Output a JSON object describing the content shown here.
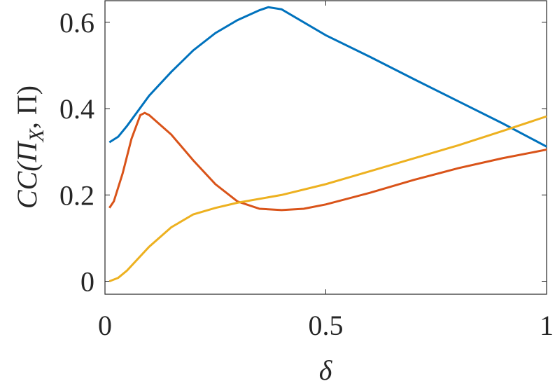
{
  "chart_data": {
    "type": "line",
    "xlabel": "δ",
    "ylabel": [
      "CC(Π",
      "X",
      ", Π)"
    ],
    "xlim": [
      0,
      1
    ],
    "ylim": [
      -0.03,
      0.65
    ],
    "xticks": [
      0,
      0.5,
      1
    ],
    "yticks": [
      0,
      0.2,
      0.4,
      0.6
    ],
    "series": [
      {
        "color": "#0072BD",
        "x": [
          0.01,
          0.03,
          0.05,
          0.1,
          0.15,
          0.2,
          0.25,
          0.3,
          0.35,
          0.37,
          0.4,
          0.5,
          0.6,
          0.7,
          0.8,
          0.9,
          1.0
        ],
        "values": [
          0.322,
          0.335,
          0.36,
          0.43,
          0.485,
          0.535,
          0.575,
          0.605,
          0.628,
          0.635,
          0.63,
          0.57,
          0.52,
          0.468,
          0.417,
          0.366,
          0.312
        ]
      },
      {
        "color": "#D95319",
        "x": [
          0.01,
          0.02,
          0.04,
          0.06,
          0.08,
          0.09,
          0.1,
          0.15,
          0.2,
          0.25,
          0.3,
          0.35,
          0.4,
          0.45,
          0.5,
          0.6,
          0.7,
          0.8,
          0.9,
          1.0
        ],
        "values": [
          0.17,
          0.185,
          0.25,
          0.33,
          0.385,
          0.39,
          0.385,
          0.34,
          0.28,
          0.225,
          0.185,
          0.168,
          0.165,
          0.168,
          0.178,
          0.205,
          0.235,
          0.262,
          0.285,
          0.305
        ]
      },
      {
        "color": "#EDB120",
        "x": [
          0.01,
          0.03,
          0.05,
          0.1,
          0.15,
          0.2,
          0.25,
          0.3,
          0.4,
          0.5,
          0.6,
          0.7,
          0.8,
          0.9,
          1.0
        ],
        "values": [
          0,
          0.008,
          0.025,
          0.08,
          0.125,
          0.155,
          0.17,
          0.182,
          0.2,
          0.225,
          0.255,
          0.285,
          0.315,
          0.348,
          0.382
        ]
      }
    ]
  }
}
